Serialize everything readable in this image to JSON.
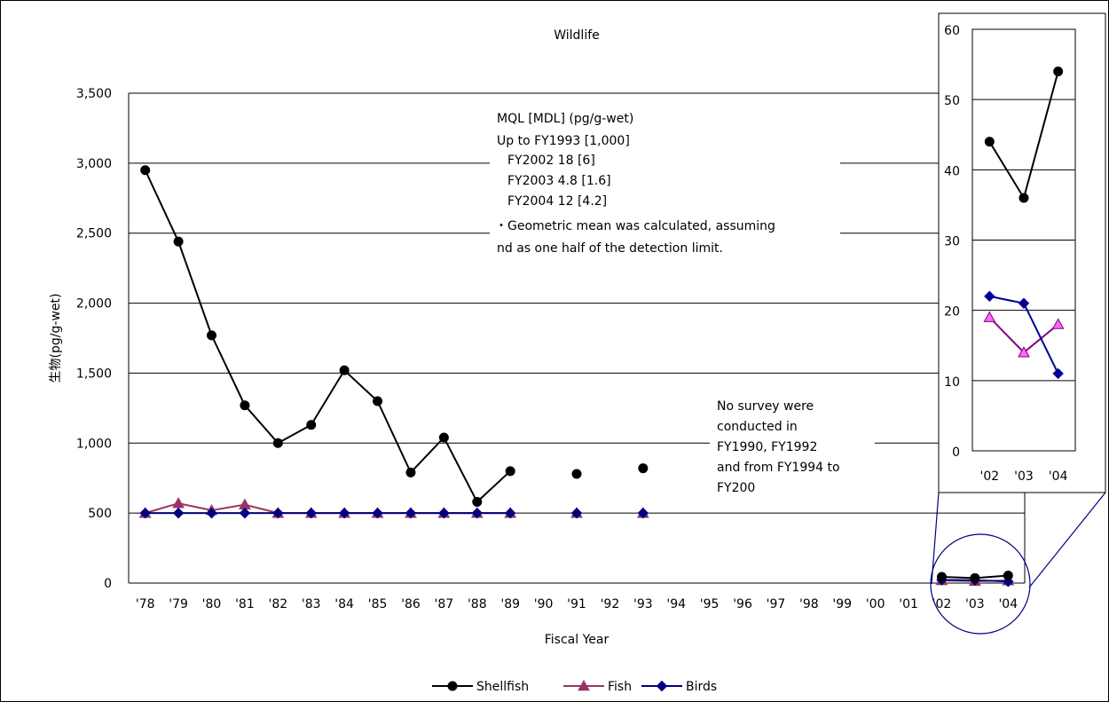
{
  "chart_data": [
    {
      "type": "line",
      "title": "Wildlife",
      "xlabel": "Fiscal Year",
      "ylabel": "生物(pg/g-wet)",
      "ylim": [
        0,
        3500
      ],
      "yticks": [
        0,
        500,
        1000,
        1500,
        2000,
        2500,
        3000,
        3500
      ],
      "ytick_labels": [
        "0",
        "500",
        "1,000",
        "1,500",
        "2,000",
        "2,500",
        "3,000",
        "3,500"
      ],
      "categories": [
        "'78",
        "'79",
        "'80",
        "'81",
        "'82",
        "'83",
        "'84",
        "'85",
        "'86",
        "'87",
        "'88",
        "'89",
        "'90",
        "'91",
        "'92",
        "'93",
        "'94",
        "'95",
        "'96",
        "'97",
        "'98",
        "'99",
        "'00",
        "'01",
        "'02",
        "'03",
        "'04"
      ],
      "grid": "horizontal",
      "legend": "bottom",
      "series": [
        {
          "name": "Shellfish",
          "color": "#000000",
          "marker": "circle",
          "values": [
            2950,
            2440,
            1770,
            1270,
            1000,
            1130,
            1520,
            1300,
            790,
            1040,
            580,
            800,
            null,
            780,
            null,
            820,
            null,
            null,
            null,
            null,
            null,
            null,
            null,
            null,
            44,
            36,
            54
          ]
        },
        {
          "name": "Fish",
          "color": "#993366",
          "marker": "triangle",
          "values": [
            500,
            570,
            520,
            560,
            500,
            500,
            500,
            500,
            500,
            500,
            500,
            500,
            null,
            500,
            null,
            500,
            null,
            null,
            null,
            null,
            null,
            null,
            null,
            null,
            19,
            14,
            18
          ]
        },
        {
          "name": "Birds",
          "color": "#000080",
          "marker": "diamond",
          "values": [
            500,
            500,
            500,
            500,
            500,
            500,
            500,
            500,
            500,
            500,
            500,
            500,
            null,
            500,
            null,
            500,
            null,
            null,
            null,
            null,
            null,
            null,
            null,
            null,
            22,
            21,
            11
          ]
        }
      ],
      "annotations": [
        "MQL [MDL] (pg/g-wet)",
        "Up to FY1993 [1,000]",
        "FY2002 18 [6]",
        "FY2003 4.8 [1.6]",
        "FY2004 12 [4.2]",
        "・Geometric mean was calculated, assuming",
        "nd as one half of the detection limit.",
        "No survey were",
        "conducted in",
        "FY1990, FY1992",
        "and from FY1994 to",
        "FY200"
      ]
    },
    {
      "type": "line",
      "title": "",
      "ylim": [
        0,
        60
      ],
      "yticks": [
        0,
        10,
        20,
        30,
        40,
        50,
        60
      ],
      "ytick_labels": [
        "0",
        "10",
        "20",
        "30",
        "40",
        "50",
        "60"
      ],
      "categories": [
        "'02",
        "'03",
        "'04"
      ],
      "grid": "horizontal",
      "series": [
        {
          "name": "Shellfish",
          "color": "#000000",
          "marker": "circle",
          "values": [
            44,
            36,
            54
          ]
        },
        {
          "name": "Fish",
          "color": "#800080",
          "fill": "#ff66ff",
          "marker": "triangle",
          "values": [
            19,
            14,
            18
          ]
        },
        {
          "name": "Birds",
          "color": "#000099",
          "marker": "diamond",
          "values": [
            22,
            21,
            11
          ]
        }
      ]
    }
  ]
}
